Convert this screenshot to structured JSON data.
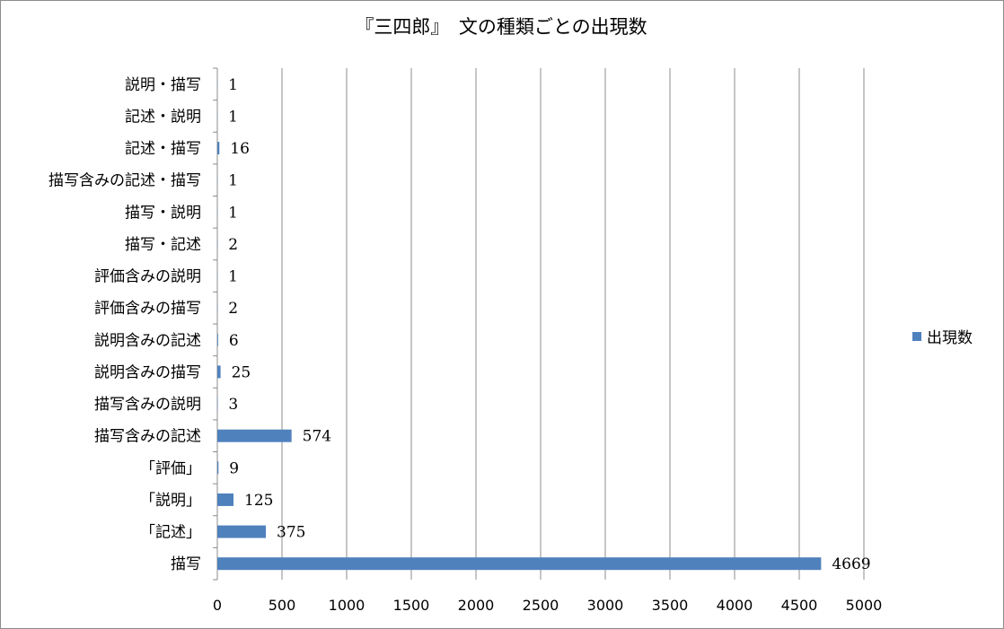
{
  "chart_data": {
    "type": "bar",
    "orientation": "horizontal",
    "title": "『三四郎』　文の種類ごとの出現数",
    "categories": [
      "描写",
      "「記述」",
      "「説明」",
      "「評価」",
      "描写含みの記述",
      "描写含みの説明",
      "説明含みの描写",
      "説明含みの記述",
      "評価含みの描写",
      "評価含みの説明",
      "描写・記述",
      "描写・説明",
      "描写含みの記述・描写",
      "記述・描写",
      "記述・説明",
      "説明・描写"
    ],
    "series": [
      {
        "name": "出現数",
        "values": [
          4669,
          375,
          125,
          9,
          574,
          3,
          25,
          6,
          2,
          1,
          2,
          1,
          1,
          16,
          1,
          1
        ]
      }
    ],
    "xlim": [
      0,
      5000
    ],
    "xticks": [
      0,
      500,
      1000,
      1500,
      2000,
      2500,
      3000,
      3500,
      4000,
      4500,
      5000
    ],
    "grid": true,
    "legend_position": "right",
    "colors": {
      "bar": "#4f81bd",
      "grid": "#8c8c8c"
    }
  }
}
